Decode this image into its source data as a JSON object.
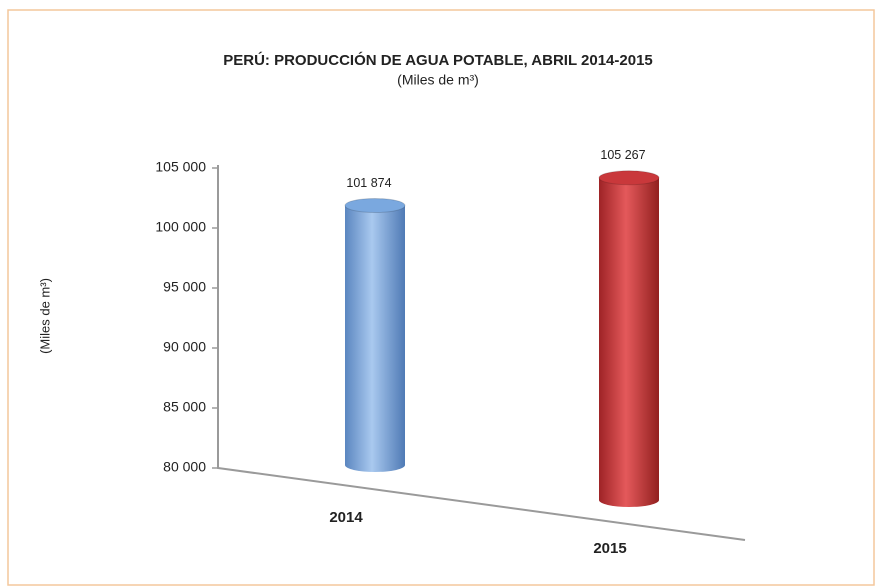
{
  "chart_data": {
    "type": "bar",
    "title": "PERÚ: PRODUCCIÓN DE AGUA POTABLE, ABRIL 2014-2015",
    "subtitle": "(Miles de m³)",
    "y_label": "(Miles de m³)",
    "categories": [
      "2014",
      "2015"
    ],
    "series": [
      {
        "name": "Producción",
        "colors": [
          "#7aa8df",
          "#c9383b"
        ],
        "values": [
          101874,
          105267
        ],
        "value_labels": [
          "101 874",
          "105 267"
        ]
      }
    ],
    "ylim": [
      80000,
      105000
    ],
    "yticks": [
      {
        "value": 80000,
        "label": "80 000"
      },
      {
        "value": 85000,
        "label": "85 000"
      },
      {
        "value": 90000,
        "label": "90 000"
      },
      {
        "value": 95000,
        "label": "95 000"
      },
      {
        "value": 100000,
        "label": "100 000"
      },
      {
        "value": 105000,
        "label": "105 000"
      }
    ]
  }
}
